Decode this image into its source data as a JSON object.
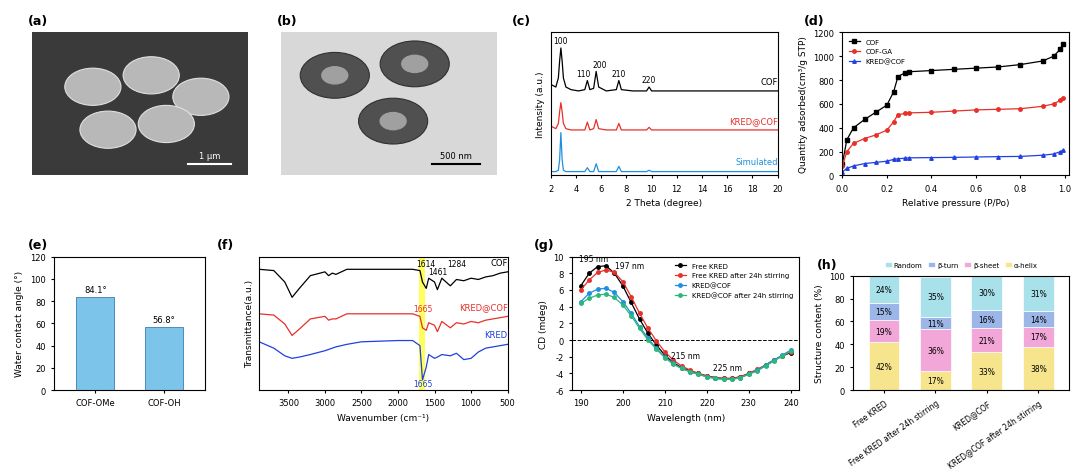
{
  "chart_data": [
    {
      "type": "image",
      "panel": "(a)",
      "scale_bar": "1 μm"
    },
    {
      "type": "image",
      "panel": "(b)",
      "scale_bar": "500 nm"
    },
    {
      "type": "line",
      "panel": "(c)",
      "x_label": "2 Theta (degree)",
      "y_label": "Intensity (a.u.)",
      "xlim": [
        2,
        20
      ],
      "xticks": [
        2,
        4,
        6,
        8,
        10,
        12,
        14,
        16,
        18,
        20
      ],
      "ylim": [
        0,
        11
      ],
      "tick_labels": "x",
      "x": [
        2,
        2.4,
        2.6,
        2.7,
        2.8,
        2.9,
        3.0,
        3.2,
        3.6,
        4.2,
        4.7,
        4.9,
        5.1,
        5.4,
        5.6,
        5.8,
        6.4,
        7.2,
        7.4,
        7.6,
        8.5,
        9.6,
        9.8,
        10.0,
        12,
        14,
        16,
        18,
        20
      ],
      "series": [
        {
          "name": "COF",
          "color": "#000000",
          "values": [
            7.0,
            6.8,
            7.5,
            8.8,
            9.8,
            8.8,
            7.5,
            6.8,
            6.6,
            6.5,
            6.6,
            7.3,
            6.6,
            6.7,
            8.0,
            6.8,
            6.5,
            6.6,
            7.3,
            6.6,
            6.5,
            6.5,
            6.8,
            6.5,
            6.5,
            6.5,
            6.5,
            6.5,
            6.5
          ]
        },
        {
          "name": "KRED@COF",
          "color": "#e8302a",
          "values": [
            3.8,
            3.6,
            4.0,
            4.9,
            5.6,
            4.9,
            4.0,
            3.6,
            3.5,
            3.5,
            3.5,
            4.1,
            3.5,
            3.6,
            4.3,
            3.6,
            3.5,
            3.5,
            4.0,
            3.5,
            3.5,
            3.5,
            3.7,
            3.5,
            3.5,
            3.5,
            3.5,
            3.5,
            3.5
          ]
        },
        {
          "name": "Simulated",
          "color": "#1f8fe0",
          "values": [
            0.3,
            0.3,
            0.4,
            1.2,
            3.3,
            1.2,
            0.4,
            0.3,
            0.3,
            0.3,
            0.3,
            0.6,
            0.3,
            0.3,
            0.9,
            0.3,
            0.3,
            0.3,
            0.7,
            0.3,
            0.3,
            0.3,
            0.4,
            0.3,
            0.3,
            0.3,
            0.3,
            0.3,
            0.3
          ]
        }
      ],
      "annotations": [
        {
          "text": "100",
          "x": 2.8,
          "y": 10.0
        },
        {
          "text": "110",
          "x": 4.6,
          "y": 7.5
        },
        {
          "text": "200",
          "x": 5.9,
          "y": 8.2
        },
        {
          "text": "210",
          "x": 7.4,
          "y": 7.5
        },
        {
          "text": "220",
          "x": 9.8,
          "y": 7.0
        }
      ]
    },
    {
      "type": "line",
      "panel": "(d)",
      "x_label": "Relative pressure (P/Po)",
      "y_label": "Quantity adsorbed(cm³/g STP)",
      "xlim": [
        0,
        1.02
      ],
      "xticks": [
        {
          "value": 0,
          "label": "0.0"
        },
        {
          "value": 0.2,
          "label": "0.2"
        },
        {
          "value": 0.4,
          "label": "0.4"
        },
        {
          "value": 0.6,
          "label": "0.6"
        },
        {
          "value": 0.8,
          "label": "0.8"
        },
        {
          "value": 1.0,
          "label": "1.0"
        }
      ],
      "ylim": [
        0,
        1200
      ],
      "yticks": [
        0,
        200,
        400,
        600,
        800,
        1000,
        1200
      ],
      "legend": "upper left",
      "x": [
        0.0,
        0.02,
        0.05,
        0.1,
        0.15,
        0.2,
        0.23,
        0.25,
        0.28,
        0.3,
        0.4,
        0.5,
        0.6,
        0.7,
        0.8,
        0.9,
        0.95,
        0.98,
        0.99
      ],
      "series": [
        {
          "name": "COF",
          "color": "#000000",
          "marker": "square",
          "values": [
            100,
            300,
            400,
            470,
            530,
            590,
            700,
            830,
            860,
            870,
            880,
            890,
            900,
            910,
            930,
            960,
            1000,
            1060,
            1100
          ]
        },
        {
          "name": "COF-GA",
          "color": "#e8302a",
          "marker": "circle",
          "values": [
            80,
            200,
            270,
            310,
            340,
            380,
            450,
            510,
            520,
            525,
            530,
            540,
            550,
            555,
            560,
            580,
            600,
            630,
            650
          ]
        },
        {
          "name": "KRED@COF",
          "color": "#2040e0",
          "marker": "triangle",
          "values": [
            30,
            60,
            80,
            100,
            110,
            120,
            135,
            140,
            145,
            148,
            150,
            152,
            155,
            158,
            160,
            170,
            180,
            200,
            210
          ]
        }
      ]
    },
    {
      "type": "bar",
      "panel": "(e)",
      "y_label": "Water contact angle (°)",
      "categories": [
        "COF-OMe",
        "COF-OH"
      ],
      "values": [
        84.1,
        56.8
      ],
      "value_labels": [
        "84.1°",
        "56.8°"
      ],
      "data_labels": true,
      "color": "#7cc4ea",
      "ylim": [
        0,
        120
      ],
      "yticks": [
        0,
        20,
        40,
        60,
        80,
        100,
        120
      ]
    },
    {
      "type": "line",
      "panel": "(f)",
      "x_label": "Wavenumber (cm⁻¹)",
      "y_label": "Transmittance(a.u.)",
      "xlim": [
        3900,
        500
      ],
      "xticks": [
        3500,
        3000,
        2500,
        2000,
        1500,
        1000,
        500
      ],
      "ylim": [
        0,
        10.5
      ],
      "tick_labels": "x",
      "highlight_range": [
        1630,
        1710
      ],
      "x": [
        3900,
        3700,
        3550,
        3450,
        3350,
        3200,
        3000,
        2950,
        2900,
        2850,
        2700,
        2500,
        2000,
        1800,
        1700,
        1665,
        1614,
        1580,
        1500,
        1461,
        1400,
        1284,
        1200,
        1100,
        1000,
        900,
        800,
        700,
        600,
        500
      ],
      "series": [
        {
          "name": "COF",
          "color": "#000000",
          "values": [
            9.5,
            9.4,
            8.5,
            7.3,
            8.0,
            9.0,
            9.3,
            9.0,
            9.2,
            9.1,
            9.5,
            9.5,
            9.5,
            9.5,
            9.4,
            8.5,
            8.0,
            8.8,
            8.5,
            7.9,
            8.8,
            8.2,
            8.7,
            8.6,
            8.8,
            8.7,
            8.9,
            9.0,
            9.2,
            9.3
          ]
        },
        {
          "name": "KRED@COF",
          "color": "#e8302a",
          "values": [
            6.0,
            5.9,
            5.2,
            4.3,
            4.8,
            5.6,
            5.8,
            5.5,
            5.6,
            5.6,
            6.0,
            6.0,
            6.0,
            6.0,
            5.8,
            4.9,
            4.7,
            5.3,
            5.1,
            4.6,
            5.4,
            4.9,
            5.3,
            5.2,
            5.4,
            5.3,
            5.5,
            5.6,
            5.7,
            5.8
          ]
        },
        {
          "name": "KRED",
          "color": "#2040e0",
          "values": [
            3.8,
            3.3,
            2.7,
            2.5,
            2.6,
            2.8,
            3.1,
            3.2,
            3.3,
            3.4,
            3.6,
            3.8,
            3.9,
            3.9,
            3.5,
            0.8,
            1.8,
            2.8,
            2.5,
            2.6,
            2.8,
            2.7,
            2.9,
            2.4,
            2.5,
            3.0,
            3.3,
            3.4,
            3.5,
            3.6
          ]
        }
      ],
      "annotations": [
        {
          "text": "1614",
          "x": 1614,
          "y": 9.6
        },
        {
          "text": "1461",
          "x": 1461,
          "y": 9.0
        },
        {
          "text": "1284",
          "x": 1200,
          "y": 9.6
        },
        {
          "text": "1665",
          "x": 1665,
          "y": 6.1,
          "color": "#e8302a"
        },
        {
          "text": "1665",
          "x": 1665,
          "y": 0.2,
          "color": "#2040e0"
        }
      ]
    },
    {
      "type": "line",
      "panel": "(g)",
      "x_label": "Wavelength (nm)",
      "y_label": "CD (mdeg)",
      "xlim": [
        188,
        242
      ],
      "xticks": [
        190,
        200,
        210,
        220,
        230,
        240
      ],
      "ylim": [
        -6,
        10
      ],
      "yticks": [
        -6,
        -4,
        -2,
        0,
        2,
        4,
        6,
        8,
        10
      ],
      "legend": "upper right",
      "reference_line": 0,
      "x": [
        190,
        192,
        194,
        196,
        198,
        200,
        202,
        204,
        206,
        208,
        210,
        212,
        214,
        216,
        218,
        220,
        222,
        224,
        226,
        228,
        230,
        232,
        234,
        236,
        238,
        240
      ],
      "series": [
        {
          "name": "Free KRED",
          "color": "#000000",
          "marker": "circle",
          "values": [
            6.5,
            8.0,
            8.8,
            8.9,
            8.0,
            6.5,
            4.5,
            2.5,
            0.8,
            -0.6,
            -1.8,
            -2.7,
            -3.3,
            -3.7,
            -4.0,
            -4.3,
            -4.5,
            -4.6,
            -4.6,
            -4.4,
            -4.0,
            -3.6,
            -3.0,
            -2.4,
            -1.9,
            -1.5
          ]
        },
        {
          "name": "Free KRED after 24h stirring",
          "color": "#e8302a",
          "marker": "circle",
          "values": [
            6.0,
            7.2,
            8.1,
            8.4,
            8.1,
            7.0,
            5.2,
            3.2,
            1.4,
            -0.1,
            -1.4,
            -2.4,
            -3.1,
            -3.6,
            -4.0,
            -4.3,
            -4.5,
            -4.6,
            -4.6,
            -4.4,
            -4.0,
            -3.5,
            -3.0,
            -2.4,
            -1.9,
            -1.4
          ]
        },
        {
          "name": "KRED@COF",
          "color": "#1f8fe0",
          "marker": "circle",
          "values": [
            4.6,
            5.6,
            6.1,
            6.2,
            5.7,
            4.6,
            3.2,
            1.6,
            0.2,
            -1.0,
            -2.0,
            -2.8,
            -3.4,
            -3.8,
            -4.1,
            -4.4,
            -4.6,
            -4.7,
            -4.7,
            -4.5,
            -4.1,
            -3.6,
            -3.0,
            -2.4,
            -1.8,
            -1.2
          ]
        },
        {
          "name": "KRED@COF after 24h stirring",
          "color": "#2cb87a",
          "marker": "circle",
          "values": [
            4.4,
            5.0,
            5.4,
            5.5,
            5.1,
            4.2,
            2.9,
            1.4,
            0.0,
            -1.1,
            -2.1,
            -2.9,
            -3.4,
            -3.8,
            -4.1,
            -4.4,
            -4.6,
            -4.7,
            -4.7,
            -4.5,
            -4.1,
            -3.7,
            -3.1,
            -2.5,
            -1.9,
            -1.3
          ]
        }
      ],
      "annotations": [
        {
          "text": "195 nm",
          "x": 193,
          "y": 9.2
        },
        {
          "text": "197 nm",
          "x": 201.5,
          "y": 8.4
        },
        {
          "text": "215 nm",
          "x": 215,
          "y": -2.4
        },
        {
          "text": "225 nm",
          "x": 225,
          "y": -3.8
        }
      ]
    },
    {
      "type": "bar",
      "panel": "(h)",
      "y_label": "Structure content (%)",
      "stacked": true,
      "data_labels": true,
      "legend": "lower center",
      "categories": [
        "Free KRED",
        "Free KRED after 24h stirring",
        "KRED@COF",
        "KRED@COF after 24h stirring"
      ],
      "ylim": [
        0,
        100
      ],
      "yticks": [
        0,
        20,
        40,
        60,
        80,
        100
      ],
      "series": [
        {
          "name": "α-helix",
          "color": "#f6e58d",
          "values": [
            42,
            17,
            33,
            38
          ],
          "value_labels": [
            "42%",
            "17%",
            "33%",
            "38%"
          ]
        },
        {
          "name": "β-sheet",
          "color": "#f2a7d8",
          "values": [
            19,
            36,
            21,
            17
          ],
          "value_labels": [
            "19%",
            "36%",
            "21%",
            "17%"
          ]
        },
        {
          "name": "β-turn",
          "color": "#9db6e8",
          "values": [
            15,
            11,
            16,
            14
          ],
          "value_labels": [
            "15%",
            "11%",
            "16%",
            "14%"
          ]
        },
        {
          "name": "Random",
          "color": "#a9e1ea",
          "values": [
            24,
            35,
            30,
            31
          ],
          "value_labels": [
            "24%",
            "35%",
            "30%",
            "31%"
          ]
        }
      ]
    }
  ]
}
